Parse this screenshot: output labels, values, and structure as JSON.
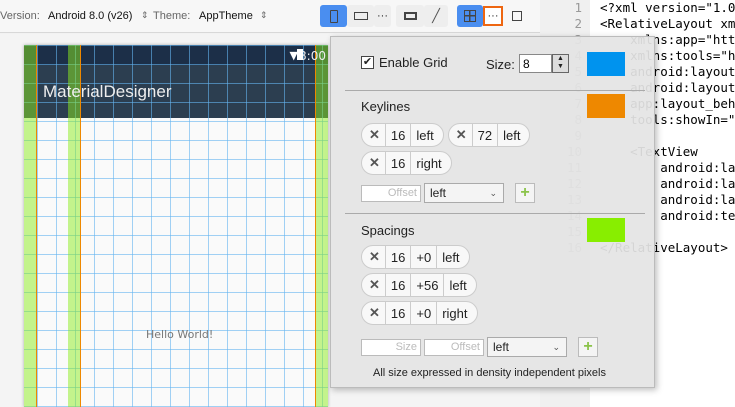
{
  "toolbar": {
    "version_label": "Version:",
    "version_value": "Android 8.0 (v26)",
    "theme_label": "Theme:",
    "theme_value": "AppTheme",
    "more": "···"
  },
  "phone": {
    "time": "8:00",
    "app_title": "MaterialDesigner",
    "hello": "Hello World!"
  },
  "editor": {
    "lines": [
      {
        "n": "1",
        "t": "<?xml version=\"1.0\""
      },
      {
        "n": "2",
        "t": "<RelativeLayout xmlns"
      },
      {
        "n": "3",
        "t": "    xmlns:app=\"http"
      },
      {
        "n": "4",
        "t": "    xmlns:tools=\"htt"
      },
      {
        "n": "5",
        "t": "    android:layout_w"
      },
      {
        "n": "6",
        "t": "    android:layout_h"
      },
      {
        "n": "7",
        "t": "    app:layout_behav"
      },
      {
        "n": "8",
        "t": "    tools:showIn=\"@l"
      },
      {
        "n": "9",
        "t": ""
      },
      {
        "n": "10",
        "t": "    <TextView"
      },
      {
        "n": "11",
        "t": "        android:layo"
      },
      {
        "n": "12",
        "t": "        android:layo"
      },
      {
        "n": "13",
        "t": "        android:layo"
      },
      {
        "n": "14",
        "t": "        android:text"
      },
      {
        "n": "15",
        "t": ""
      },
      {
        "n": "16",
        "t": "</RelativeLayout>"
      }
    ]
  },
  "popup": {
    "enable_grid": "Enable Grid",
    "grid_checked": true,
    "size_label": "Size:",
    "size_value": "8",
    "grid_color": "#0093ee",
    "keyline_color": "#ee8800",
    "spacing_color": "#88ee00",
    "keylines_title": "Keylines",
    "keylines": [
      {
        "size": "16",
        "side": "left"
      },
      {
        "size": "72",
        "side": "left"
      },
      {
        "size": "16",
        "side": "right"
      }
    ],
    "offset_placeholder": "Offset",
    "size_placeholder": "Size",
    "side_select": "left",
    "spacings_title": "Spacings",
    "spacings": [
      {
        "size": "16",
        "offset": "+0",
        "side": "left"
      },
      {
        "size": "16",
        "offset": "+56",
        "side": "left"
      },
      {
        "size": "16",
        "offset": "+0",
        "side": "right"
      }
    ],
    "footer": "All size expressed in density independent pixels",
    "remove": "✕",
    "add": "+"
  }
}
